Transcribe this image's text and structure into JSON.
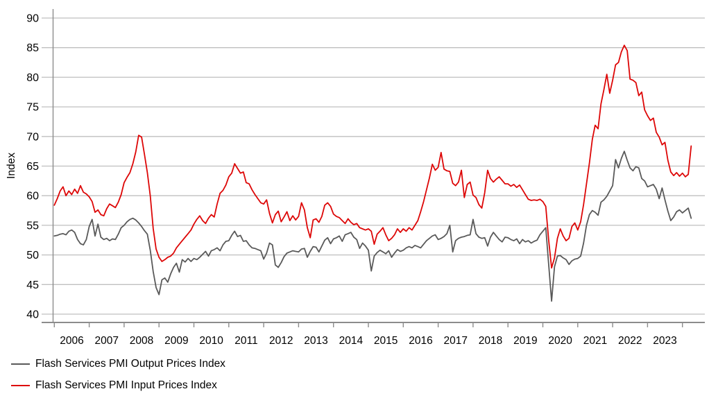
{
  "chart_data": {
    "type": "line",
    "title": "",
    "ylabel": "Index",
    "ylim": [
      40,
      90
    ],
    "ytick_step": 5,
    "ytick_labels": [
      "40",
      "45",
      "50",
      "55",
      "60",
      "65",
      "70",
      "75",
      "80",
      "85",
      "90"
    ],
    "x_year_labels": [
      "2006",
      "2007",
      "2008",
      "2009",
      "2010",
      "2011",
      "2012",
      "2013",
      "2014",
      "2015",
      "2016",
      "2017",
      "2018",
      "2019",
      "2020",
      "2021",
      "2022",
      "2023"
    ],
    "x_start_year": 2006,
    "frequency": "monthly",
    "grid": "horizontal",
    "legend_position": "bottom-left",
    "series": [
      {
        "name": "Flash Services PMI Output Prices Index",
        "color": "#595959",
        "values": [
          53.2,
          53.3,
          53.5,
          53.6,
          53.4,
          54.0,
          54.2,
          53.8,
          52.6,
          51.9,
          51.7,
          52.6,
          54.8,
          56.0,
          53.2,
          55.2,
          53.0,
          52.6,
          52.8,
          52.4,
          52.7,
          52.6,
          53.5,
          54.6,
          55.0,
          55.6,
          56.0,
          56.2,
          55.9,
          55.4,
          54.8,
          54.1,
          53.5,
          50.8,
          47.2,
          44.5,
          43.3,
          45.8,
          46.1,
          45.4,
          46.8,
          47.9,
          48.6,
          47.1,
          49.2,
          48.8,
          49.4,
          48.9,
          49.4,
          49.2,
          49.6,
          50.1,
          50.6,
          49.8,
          50.7,
          50.9,
          51.2,
          50.7,
          51.7,
          52.3,
          52.4,
          53.3,
          54.0,
          53.1,
          53.3,
          52.3,
          52.4,
          51.7,
          51.2,
          51.1,
          50.9,
          50.7,
          49.3,
          50.3,
          52.0,
          51.7,
          48.3,
          47.9,
          48.7,
          49.7,
          50.3,
          50.5,
          50.7,
          50.6,
          50.5,
          51.0,
          51.1,
          49.6,
          50.6,
          51.4,
          51.3,
          50.5,
          51.5,
          52.5,
          52.9,
          51.9,
          52.7,
          52.9,
          53.2,
          52.3,
          53.4,
          53.6,
          53.8,
          53.0,
          52.6,
          51.1,
          52.0,
          51.5,
          50.8,
          47.3,
          49.8,
          50.4,
          50.8,
          50.5,
          50.2,
          50.7,
          49.6,
          50.3,
          50.9,
          50.6,
          50.8,
          51.2,
          51.4,
          51.2,
          51.6,
          51.4,
          51.2,
          51.8,
          52.4,
          52.8,
          53.2,
          53.4,
          52.6,
          52.8,
          53.1,
          53.6,
          55.0,
          50.5,
          52.4,
          52.8,
          53.0,
          53.1,
          53.3,
          53.4,
          56.0,
          53.6,
          53.0,
          52.8,
          52.9,
          51.5,
          53.0,
          53.8,
          53.2,
          52.6,
          52.2,
          53.0,
          52.9,
          52.6,
          52.4,
          52.7,
          51.9,
          52.6,
          52.2,
          52.4,
          52.0,
          52.3,
          52.5,
          53.4,
          54.0,
          54.6,
          48.4,
          42.2,
          48.0,
          49.8,
          49.9,
          49.5,
          49.2,
          48.4,
          49.0,
          49.3,
          49.4,
          49.8,
          52.0,
          55.0,
          56.8,
          57.5,
          57.2,
          56.7,
          58.9,
          59.3,
          59.9,
          60.8,
          61.7,
          66.1,
          64.7,
          66.3,
          67.5,
          66.0,
          64.7,
          64.2,
          64.9,
          64.7,
          62.9,
          62.5,
          61.5,
          61.7,
          61.9,
          61.1,
          59.5,
          61.3,
          59.3,
          57.4,
          55.8,
          56.4,
          57.3,
          57.6,
          57.1,
          57.5,
          57.9,
          56.2
        ]
      },
      {
        "name": "Flash Services PMI Input Prices Index",
        "color": "#dd0606",
        "values": [
          58.4,
          59.5,
          60.8,
          61.5,
          60.0,
          60.8,
          60.2,
          61.1,
          60.4,
          61.7,
          60.6,
          60.3,
          59.8,
          59.0,
          57.2,
          57.6,
          56.8,
          56.6,
          57.8,
          58.6,
          58.3,
          58.0,
          58.9,
          60.2,
          62.2,
          63.1,
          63.9,
          65.4,
          67.4,
          70.2,
          69.9,
          67.0,
          63.9,
          60.0,
          54.5,
          51.0,
          49.6,
          48.9,
          49.2,
          49.6,
          49.8,
          50.3,
          51.2,
          51.8,
          52.4,
          53.0,
          53.6,
          54.2,
          55.2,
          56.0,
          56.6,
          55.8,
          55.3,
          56.2,
          56.8,
          56.4,
          58.6,
          60.4,
          60.9,
          61.8,
          63.2,
          63.8,
          65.4,
          64.6,
          63.8,
          64.0,
          62.2,
          62.0,
          61.0,
          60.2,
          59.5,
          58.8,
          58.6,
          59.3,
          57.0,
          55.4,
          56.8,
          57.4,
          55.6,
          56.4,
          57.3,
          55.8,
          56.6,
          55.9,
          56.5,
          58.8,
          57.6,
          54.6,
          52.9,
          55.9,
          56.1,
          55.5,
          56.5,
          58.4,
          58.8,
          58.2,
          56.9,
          56.5,
          56.3,
          55.8,
          55.3,
          56.1,
          55.5,
          55.1,
          55.3,
          54.6,
          54.4,
          54.2,
          54.4,
          54.0,
          51.8,
          53.5,
          54.0,
          54.6,
          53.4,
          52.4,
          52.8,
          53.4,
          54.4,
          53.8,
          54.4,
          54.0,
          54.6,
          54.2,
          55.0,
          55.8,
          57.3,
          59.0,
          61.0,
          63.0,
          65.3,
          64.3,
          64.8,
          67.3,
          64.5,
          64.2,
          64.1,
          62.1,
          61.7,
          62.3,
          64.3,
          59.7,
          61.9,
          62.3,
          60.1,
          59.7,
          58.5,
          57.9,
          60.5,
          64.3,
          62.9,
          62.3,
          62.8,
          63.2,
          62.6,
          62.0,
          62.0,
          61.6,
          61.9,
          61.4,
          61.8,
          61.0,
          60.2,
          59.4,
          59.2,
          59.3,
          59.2,
          59.4,
          59.0,
          58.2,
          52.5,
          47.8,
          49.5,
          52.8,
          54.4,
          53.2,
          52.4,
          52.8,
          54.8,
          55.4,
          54.2,
          55.6,
          58.5,
          62.0,
          65.5,
          69.5,
          71.9,
          71.3,
          75.5,
          77.9,
          80.5,
          77.3,
          79.5,
          82.1,
          82.5,
          84.3,
          85.4,
          84.5,
          79.7,
          79.5,
          79.1,
          76.9,
          77.5,
          74.5,
          73.5,
          72.7,
          73.1,
          70.7,
          69.9,
          68.6,
          69.0,
          66.0,
          64.0,
          63.4,
          63.9,
          63.3,
          63.8,
          63.2,
          63.6,
          68.4
        ]
      }
    ]
  },
  "colors": {
    "background": "#ffffff",
    "gridline": "#bfbfbf",
    "axis": "#8c8c8c",
    "text": "#000000"
  }
}
